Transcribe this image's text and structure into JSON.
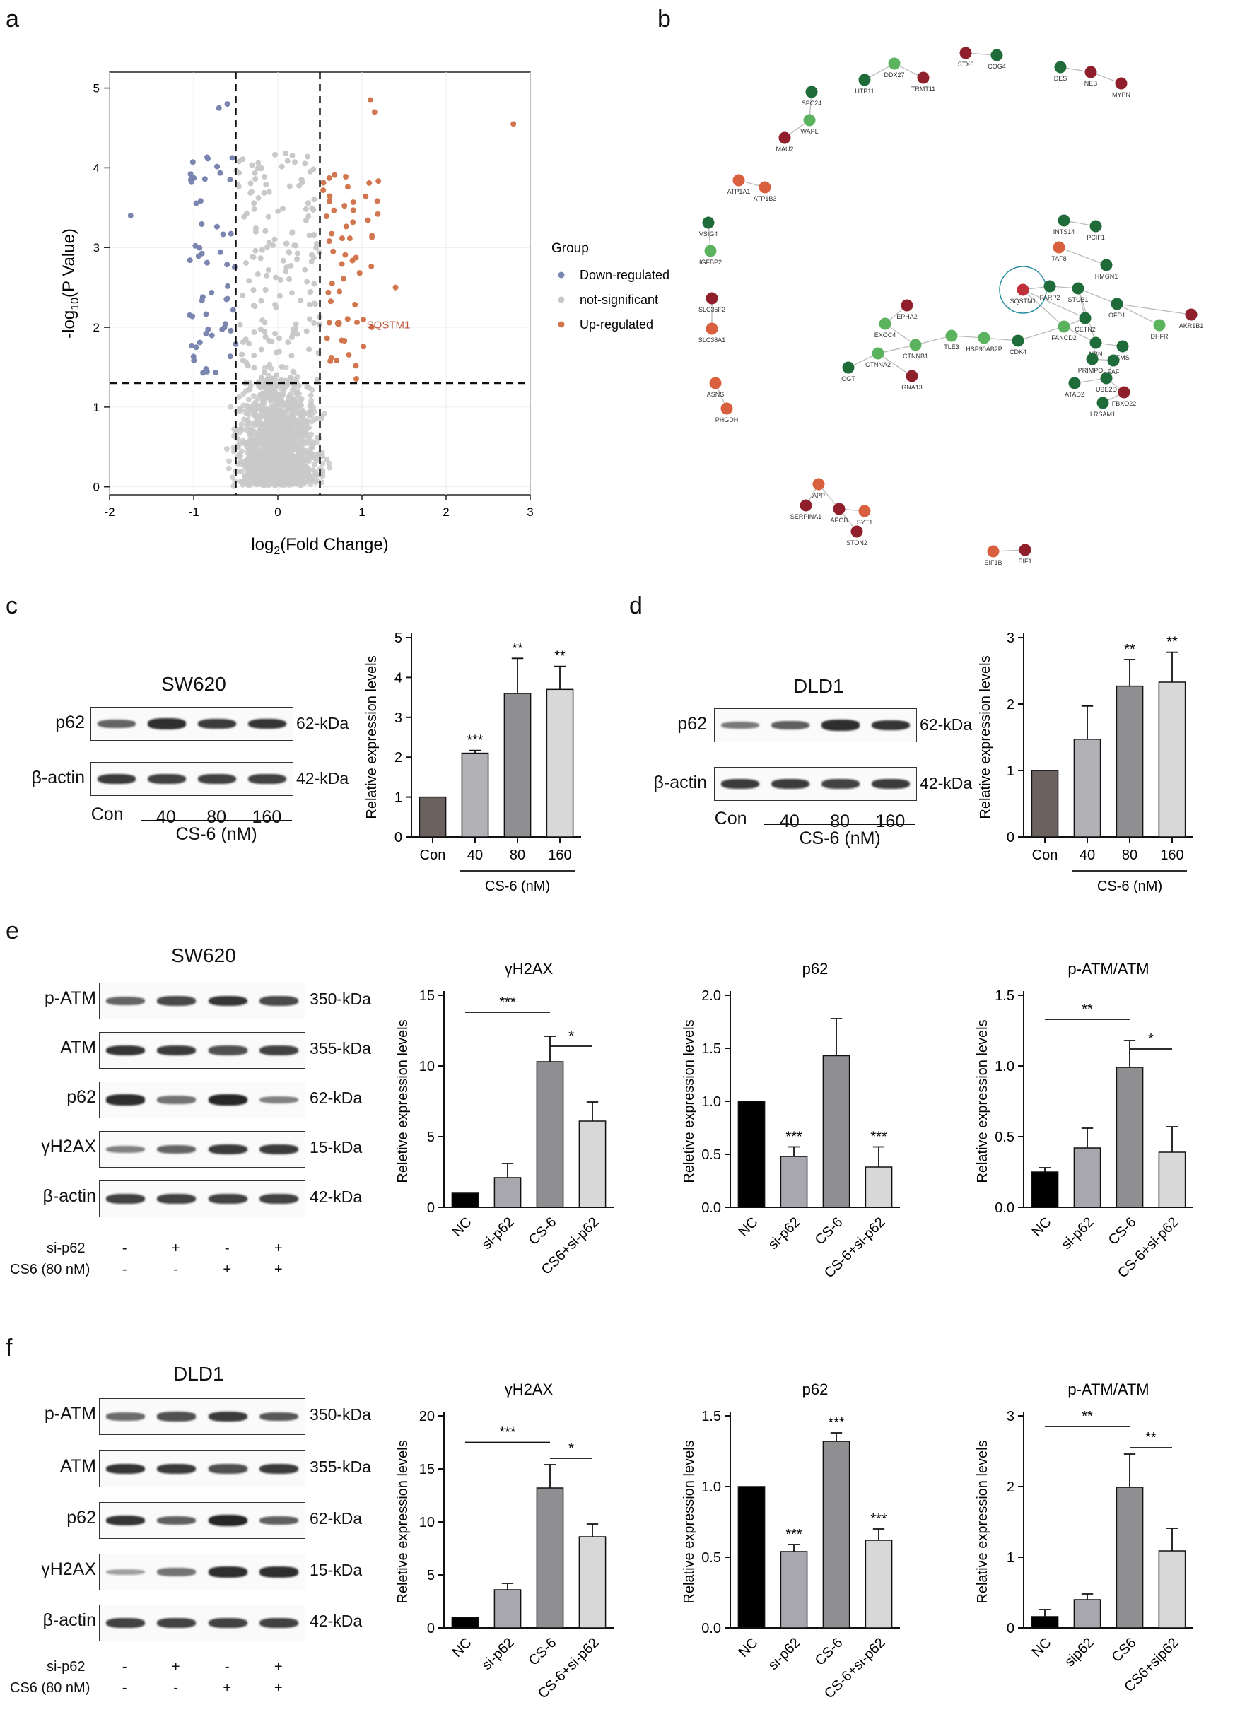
{
  "panels": {
    "a": "a",
    "b": "b",
    "c": "c",
    "d": "d",
    "e": "e",
    "f": "f"
  },
  "volcano": {
    "xlabel_pre": "log",
    "xlabel_sub": "2",
    "xlabel_post": "(Fold Change)",
    "ylabel_pre": "-log",
    "ylabel_sub": "10",
    "ylabel_post": "(P Value)",
    "x_ticks": [
      "-2",
      "-1",
      "0",
      "1",
      "2",
      "3"
    ],
    "y_ticks": [
      "0",
      "1",
      "2",
      "3",
      "4",
      "5"
    ],
    "xlim": [
      -2,
      3
    ],
    "ylim": [
      -0.1,
      5.2
    ],
    "thresholds": {
      "x": [
        -0.5,
        0.5
      ],
      "y": 1.3
    },
    "legend_title": "Group",
    "legend": [
      {
        "label": "Down-regulated",
        "color": "#7b86b0"
      },
      {
        "label": "not-significant",
        "color": "#c8c8c8"
      },
      {
        "label": "Up-regulated",
        "color": "#d2764f"
      }
    ],
    "highlight_label": "SQSTM1",
    "highlight_point": {
      "x": 0.72,
      "y": 2.05
    }
  },
  "network": {
    "nodes": [
      {
        "label": "STX6",
        "color": "#8f1f2a"
      },
      {
        "label": "COG4",
        "color": "#1f6b3a"
      },
      {
        "label": "DES",
        "color": "#1f6b3a"
      },
      {
        "label": "NEB",
        "color": "#8f1f2a"
      },
      {
        "label": "MYPN",
        "color": "#8f1f2a"
      },
      {
        "label": "DDX27",
        "color": "#5bb35e"
      },
      {
        "label": "UTP11",
        "color": "#1f6b3a"
      },
      {
        "label": "TRMT11",
        "color": "#8f1f2a"
      },
      {
        "label": "SPC24",
        "color": "#1f6b3a"
      },
      {
        "label": "WAPL",
        "color": "#5bb35e"
      },
      {
        "label": "MAU2",
        "color": "#8f1f2a"
      },
      {
        "label": "ATP1A1",
        "color": "#d8603f"
      },
      {
        "label": "ATP1B3",
        "color": "#d8603f"
      },
      {
        "label": "VSIG4",
        "color": "#1f6b3a"
      },
      {
        "label": "IGFBP2",
        "color": "#5bb35e"
      },
      {
        "label": "SLC35F2",
        "color": "#8f1f2a"
      },
      {
        "label": "SLC38A1",
        "color": "#d8603f"
      },
      {
        "label": "ASNS",
        "color": "#d8603f"
      },
      {
        "label": "PHGDH",
        "color": "#d8603f"
      },
      {
        "label": "INTS14",
        "color": "#1f6b3a"
      },
      {
        "label": "PCIF1",
        "color": "#1f6b3a"
      },
      {
        "label": "TAF8",
        "color": "#d8603f"
      },
      {
        "label": "HMGN1",
        "color": "#1f6b3a"
      },
      {
        "label": "SQSTM1",
        "color": "#c0303a"
      },
      {
        "label": "PARP2",
        "color": "#1f6b3a"
      },
      {
        "label": "STUB1",
        "color": "#1f6b3a"
      },
      {
        "label": "OFD1",
        "color": "#1f6b3a"
      },
      {
        "label": "AKR1B1",
        "color": "#8f1f2a"
      },
      {
        "label": "DHFR",
        "color": "#5bb35e"
      },
      {
        "label": "EPHA2",
        "color": "#8f1f2a"
      },
      {
        "label": "EXOC4",
        "color": "#5bb35e"
      },
      {
        "label": "CTNNB1",
        "color": "#5bb35e"
      },
      {
        "label": "TLE3",
        "color": "#5bb35e"
      },
      {
        "label": "HSP90AB2P",
        "color": "#5bb35e"
      },
      {
        "label": "CDK4",
        "color": "#1f6b3a"
      },
      {
        "label": "FANCD2",
        "color": "#5bb35e"
      },
      {
        "label": "CETN2",
        "color": "#1f6b3a"
      },
      {
        "label": "NBN",
        "color": "#1f6b3a"
      },
      {
        "label": "EMS",
        "color": "#1f6b3a"
      },
      {
        "label": "PRIMPOL",
        "color": "#1f6b3a"
      },
      {
        "label": "PAF",
        "color": "#1f6b3a"
      },
      {
        "label": "UBE2D",
        "color": "#1f6b3a"
      },
      {
        "label": "ATAD2",
        "color": "#1f6b3a"
      },
      {
        "label": "FBXO22",
        "color": "#8f1f2a"
      },
      {
        "label": "LRSAM1",
        "color": "#1f6b3a"
      },
      {
        "label": "OGT",
        "color": "#1f6b3a"
      },
      {
        "label": "CTNNA2",
        "color": "#5bb35e"
      },
      {
        "label": "GNA13",
        "color": "#8f1f2a"
      },
      {
        "label": "APP",
        "color": "#d8603f"
      },
      {
        "label": "SERPINA1",
        "color": "#8f1f2a"
      },
      {
        "label": "APOB",
        "color": "#8f1f2a"
      },
      {
        "label": "SYT1",
        "color": "#d8603f"
      },
      {
        "label": "STON2",
        "color": "#8f1f2a"
      },
      {
        "label": "EIF1B",
        "color": "#d8603f"
      },
      {
        "label": "EIF1",
        "color": "#8f1f2a"
      }
    ]
  },
  "blot_c": {
    "cell": "SW620",
    "rows": [
      {
        "name": "p62",
        "kda": "62-kDa"
      },
      {
        "name": "β-actin",
        "kda": "42-kDa"
      }
    ],
    "lanes": [
      "Con",
      "40",
      "80",
      "160"
    ],
    "treatment": "CS-6 (nM)"
  },
  "blot_d": {
    "cell": "DLD1",
    "rows": [
      {
        "name": "p62",
        "kda": "62-kDa"
      },
      {
        "name": "β-actin",
        "kda": "42-kDa"
      }
    ],
    "lanes": [
      "Con",
      "40",
      "80",
      "160"
    ],
    "treatment": "CS-6 (nM)"
  },
  "blot_e": {
    "cell": "SW620",
    "rows": [
      {
        "name": "p-ATM",
        "kda": "350-kDa"
      },
      {
        "name": "ATM",
        "kda": "355-kDa"
      },
      {
        "name": "p62",
        "kda": "62-kDa"
      },
      {
        "name": "γH2AX",
        "kda": "15-kDa"
      },
      {
        "name": "β-actin",
        "kda": "42-kDa"
      }
    ],
    "conditions": [
      {
        "name": "si-p62",
        "signs": [
          "-",
          "+",
          "-",
          "+"
        ]
      },
      {
        "name": "CS6 (80 nM)",
        "signs": [
          "-",
          "-",
          "+",
          "+"
        ]
      }
    ]
  },
  "blot_f": {
    "cell": "DLD1",
    "rows": [
      {
        "name": "p-ATM",
        "kda": "350-kDa"
      },
      {
        "name": "ATM",
        "kda": "355-kDa"
      },
      {
        "name": "p62",
        "kda": "62-kDa"
      },
      {
        "name": "γH2AX",
        "kda": "15-kDa"
      },
      {
        "name": "β-actin",
        "kda": "42-kDa"
      }
    ],
    "conditions": [
      {
        "name": "si-p62",
        "signs": [
          "-",
          "+",
          "-",
          "+"
        ]
      },
      {
        "name": "CS6 (80 nM)",
        "signs": [
          "-",
          "-",
          "+",
          "+"
        ]
      }
    ]
  },
  "chart_data": [
    {
      "id": "c",
      "type": "bar",
      "title": "",
      "ylabel": "Relative expression levels",
      "categories": [
        "Con",
        "40",
        "80",
        "160"
      ],
      "values": [
        1.0,
        2.1,
        3.6,
        3.7
      ],
      "errors": [
        0,
        0.07,
        0.88,
        0.58
      ],
      "sig": [
        "",
        "***",
        "**",
        "**"
      ],
      "ylim": [
        0,
        5
      ],
      "yticks": [
        "0",
        "1",
        "2",
        "3",
        "4",
        "5"
      ],
      "group_label": "CS-6 (nM)",
      "group_range": [
        1,
        3
      ],
      "colors": [
        "#6b6260",
        "#b1b1b6",
        "#8f8f91",
        "#d8d8d8"
      ]
    },
    {
      "id": "d",
      "type": "bar",
      "title": "",
      "ylabel": "Relative expression levels",
      "categories": [
        "Con",
        "40",
        "80",
        "160"
      ],
      "values": [
        1.0,
        1.47,
        2.27,
        2.33
      ],
      "errors": [
        0,
        0.5,
        0.4,
        0.45
      ],
      "sig": [
        "",
        "",
        "**",
        "**"
      ],
      "ylim": [
        0,
        3
      ],
      "yticks": [
        "0",
        "1",
        "2",
        "3"
      ],
      "group_label": "CS-6 (nM)",
      "group_range": [
        1,
        3
      ],
      "colors": [
        "#6b6260",
        "#b1b1b6",
        "#8f8f91",
        "#d8d8d8"
      ]
    },
    {
      "id": "e1",
      "type": "bar",
      "title": "γH2AX",
      "ylabel": "Reletive expression levels",
      "categories": [
        "NC",
        "si-p62",
        "CS-6",
        "CS6+si-p62"
      ],
      "values": [
        1.0,
        2.1,
        10.3,
        6.1
      ],
      "errors": [
        0,
        1.0,
        1.8,
        1.35
      ],
      "sig": [
        "",
        "",
        "",
        ""
      ],
      "ylim": [
        0,
        15
      ],
      "yticks": [
        "0",
        "5",
        "10",
        "15"
      ],
      "brackets": [
        {
          "from": 0,
          "to": 2,
          "y": 13.8,
          "label": "***"
        },
        {
          "from": 2,
          "to": 3,
          "y": 11.4,
          "label": "*"
        }
      ],
      "colors": [
        "#000000",
        "#a7a7ad",
        "#8f8f91",
        "#d8d8d8"
      ]
    },
    {
      "id": "e2",
      "type": "bar",
      "title": "p62",
      "ylabel": "Reletive expression levels",
      "categories": [
        "NC",
        "si-p62",
        "CS-6",
        "CS-6+si-p62"
      ],
      "values": [
        1.0,
        0.48,
        1.43,
        0.38
      ],
      "errors": [
        0,
        0.09,
        0.35,
        0.19
      ],
      "sig": [
        "",
        "***",
        "",
        "***"
      ],
      "ylim": [
        0,
        2.0
      ],
      "yticks": [
        "0.0",
        "0.5",
        "1.0",
        "1.5",
        "2.0"
      ],
      "colors": [
        "#000000",
        "#a7a7ad",
        "#8f8f91",
        "#d8d8d8"
      ]
    },
    {
      "id": "e3",
      "type": "bar",
      "title": "p-ATM/ATM",
      "ylabel": "Relative expression levels",
      "categories": [
        "NC",
        "si-p62",
        "CS-6",
        "CS-6+si-p62"
      ],
      "values": [
        0.25,
        0.42,
        0.99,
        0.39
      ],
      "errors": [
        0.03,
        0.14,
        0.19,
        0.18
      ],
      "sig": [
        "",
        "",
        "",
        ""
      ],
      "ylim": [
        0,
        1.5
      ],
      "yticks": [
        "0.0",
        "0.5",
        "1.0",
        "1.5"
      ],
      "brackets": [
        {
          "from": 0,
          "to": 2,
          "y": 1.33,
          "label": "**"
        },
        {
          "from": 2,
          "to": 3,
          "y": 1.12,
          "label": "*"
        }
      ],
      "colors": [
        "#000000",
        "#a7a7ad",
        "#8f8f91",
        "#d8d8d8"
      ]
    },
    {
      "id": "f1",
      "type": "bar",
      "title": "γH2AX",
      "ylabel": "Reletive expression levels",
      "categories": [
        "NC",
        "si-p62",
        "CS-6",
        "CS-6+si-p62"
      ],
      "values": [
        1.0,
        3.6,
        13.2,
        8.6
      ],
      "errors": [
        0,
        0.6,
        2.2,
        1.2
      ],
      "sig": [
        "",
        "",
        "",
        ""
      ],
      "ylim": [
        0,
        20
      ],
      "yticks": [
        "0",
        "5",
        "10",
        "15",
        "20"
      ],
      "brackets": [
        {
          "from": 0,
          "to": 2,
          "y": 17.5,
          "label": "***"
        },
        {
          "from": 2,
          "to": 3,
          "y": 16.0,
          "label": "*"
        }
      ],
      "colors": [
        "#000000",
        "#a7a7ad",
        "#8f8f91",
        "#d8d8d8"
      ]
    },
    {
      "id": "f2",
      "type": "bar",
      "title": "p62",
      "ylabel": "Relative expression levels",
      "categories": [
        "NC",
        "si-p62",
        "CS-6",
        "CS-6+si-p62"
      ],
      "values": [
        1.0,
        0.54,
        1.32,
        0.62
      ],
      "errors": [
        0,
        0.05,
        0.06,
        0.08
      ],
      "sig": [
        "",
        "***",
        "***",
        "***"
      ],
      "ylim": [
        0,
        1.5
      ],
      "yticks": [
        "0.0",
        "0.5",
        "1.0",
        "1.5"
      ],
      "colors": [
        "#000000",
        "#a7a7ad",
        "#8f8f91",
        "#d8d8d8"
      ]
    },
    {
      "id": "f3",
      "type": "bar",
      "title": "p-ATM/ATM",
      "ylabel": "Relative expression levels",
      "categories": [
        "NC",
        "sip62",
        "CS6",
        "CS6+sip62"
      ],
      "values": [
        0.16,
        0.4,
        1.99,
        1.09
      ],
      "errors": [
        0.1,
        0.08,
        0.47,
        0.32
      ],
      "sig": [
        "",
        "",
        "",
        ""
      ],
      "ylim": [
        0,
        3
      ],
      "yticks": [
        "0",
        "1",
        "2",
        "3"
      ],
      "brackets": [
        {
          "from": 0,
          "to": 2,
          "y": 2.85,
          "label": "**"
        },
        {
          "from": 2,
          "to": 3,
          "y": 2.55,
          "label": "**"
        }
      ],
      "colors": [
        "#000000",
        "#a7a7ad",
        "#8f8f91",
        "#d8d8d8"
      ]
    }
  ]
}
